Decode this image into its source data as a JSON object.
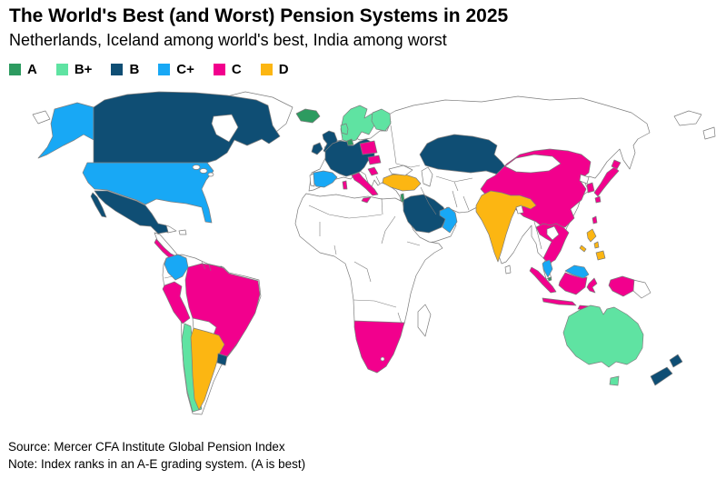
{
  "title": "The World's Best (and Worst) Pension Systems in 2025",
  "subtitle": "Netherlands, Iceland among world's best, India among worst",
  "legend": [
    {
      "grade": "A",
      "color": "#2d9b60"
    },
    {
      "grade": "B+",
      "color": "#5fe3a2"
    },
    {
      "grade": "B",
      "color": "#0f4e74"
    },
    {
      "grade": "C+",
      "color": "#18a8f5"
    },
    {
      "grade": "C",
      "color": "#f2008d"
    },
    {
      "grade": "D",
      "color": "#fcb612"
    }
  ],
  "map_colors": {
    "land": "#ffffff",
    "border": "#7d7d7d",
    "background": "#ffffff"
  },
  "footer": {
    "source": "Source: Mercer CFA Institute Global Pension Index",
    "note": "Note: Index ranks in an A-E grading system. (A is best)"
  },
  "chart_data": {
    "type": "heatmap",
    "title": "The World's Best (and Worst) Pension Systems in 2025",
    "subtitle": "Netherlands, Iceland among world's best, India among worst",
    "unit": "pension system grade (A best to E worst)",
    "legend_position": "top-left",
    "categories": [
      "A",
      "B+",
      "B",
      "C+",
      "C",
      "D"
    ],
    "grades": {
      "A": [
        "Netherlands",
        "Iceland",
        "Israel",
        "Singapore"
      ],
      "B+": [
        "Denmark",
        "Norway",
        "Sweden",
        "Finland",
        "Chile",
        "Australia"
      ],
      "B": [
        "Canada",
        "Mexico",
        "United Kingdom",
        "Ireland",
        "France",
        "Germany",
        "Belgium",
        "Switzerland",
        "Kazakhstan",
        "Saudi Arabia",
        "Uruguay",
        "New Zealand"
      ],
      "C+": [
        "United States",
        "Spain",
        "Colombia",
        "United Arab Emirates",
        "Oman",
        "Malaysia"
      ],
      "C": [
        "China",
        "Japan",
        "South Korea",
        "Taiwan",
        "Thailand",
        "Vietnam",
        "Indonesia",
        "Italy",
        "Austria",
        "Poland",
        "Croatia",
        "Peru",
        "Brazil",
        "Panama",
        "South Africa",
        "Namibia",
        "Botswana"
      ],
      "D": [
        "India",
        "Turkey",
        "Argentina",
        "Philippines"
      ]
    }
  }
}
